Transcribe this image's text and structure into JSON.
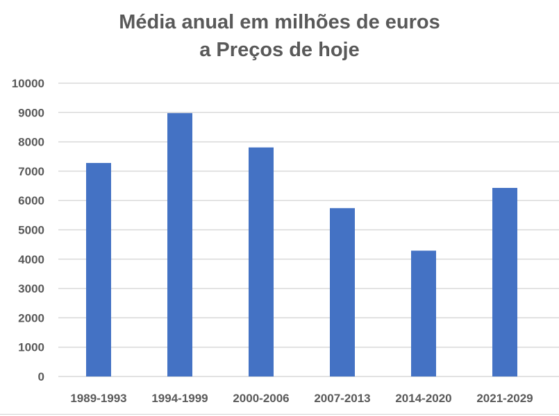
{
  "chart_data": {
    "type": "bar",
    "title": [
      "Média anual em milhões de euros",
      "a Preços de hoje"
    ],
    "xlabel": "",
    "ylabel": "",
    "categories": [
      "1989-1993",
      "1994-1999",
      "2000-2006",
      "2007-2013",
      "2014-2020",
      "2021-2029"
    ],
    "values": [
      7280,
      8980,
      7810,
      5740,
      4290,
      6430
    ],
    "ylim": [
      0,
      10000
    ],
    "yticks": [
      0,
      1000,
      2000,
      3000,
      4000,
      5000,
      6000,
      7000,
      8000,
      9000,
      10000
    ],
    "grid": true,
    "legend": "none",
    "bar_color": "#4472C4",
    "grid_color": "#d9d9d9",
    "text_color": "#595959"
  }
}
